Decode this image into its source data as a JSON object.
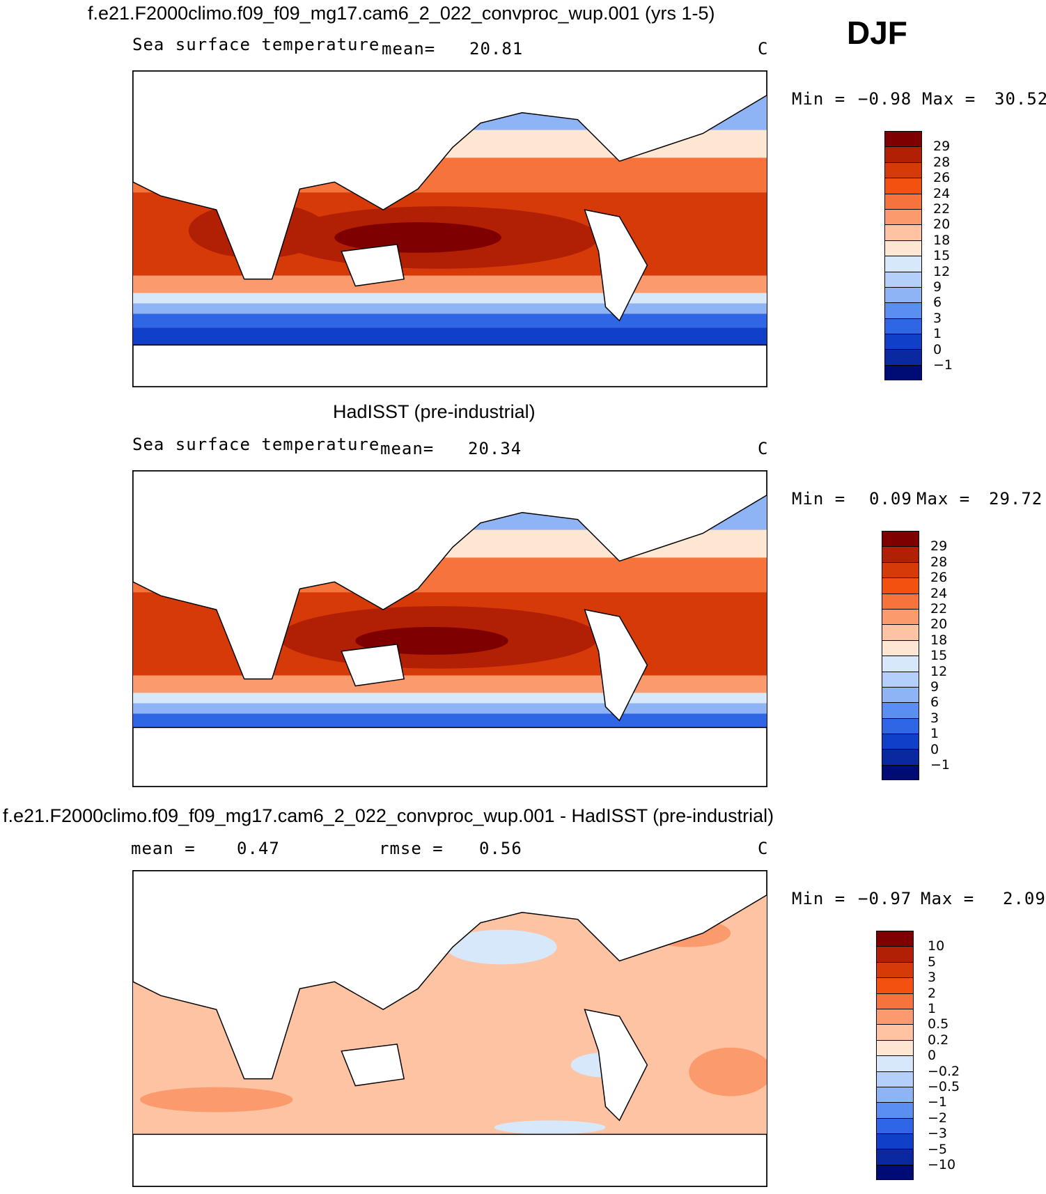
{
  "season": "DJF",
  "panels": [
    {
      "title": "f.e21.F2000climo.f09_f09_mg17.cam6_2_022_convproc_wup.001 (yrs 1-5)",
      "variable": "Sea surface temperature",
      "stat1_label": "mean=",
      "stat1_value": "20.81",
      "stat2_label": "",
      "stat2_value": "",
      "units": "C",
      "min_label": "Min =",
      "min_value": "−0.98",
      "max_label": "Max =",
      "max_value": "30.52",
      "palette": "abs",
      "levels": [
        "29",
        "28",
        "26",
        "24",
        "22",
        "20",
        "18",
        "15",
        "12",
        "9",
        "6",
        "3",
        "1",
        "0",
        "−1"
      ]
    },
    {
      "title": "HadISST (pre-industrial)",
      "variable": "Sea surface temperature",
      "stat1_label": "mean=",
      "stat1_value": "20.34",
      "stat2_label": "",
      "stat2_value": "",
      "units": "C",
      "min_label": "Min =",
      "min_value": "0.09",
      "max_label": "Max =",
      "max_value": "29.72",
      "palette": "abs",
      "levels": [
        "29",
        "28",
        "26",
        "24",
        "22",
        "20",
        "18",
        "15",
        "12",
        "9",
        "6",
        "3",
        "1",
        "0",
        "−1"
      ]
    },
    {
      "title": "f.e21.F2000climo.f09_f09_mg17.cam6_2_022_convproc_wup.001 - HadISST (pre-industrial)",
      "variable": "",
      "stat1_label": "mean =",
      "stat1_value": "0.47",
      "stat2_label": "rmse =",
      "stat2_value": "0.56",
      "units": "C",
      "min_label": "Min =",
      "min_value": "−0.97",
      "max_label": "Max =",
      "max_value": "2.09",
      "palette": "diff",
      "levels": [
        "10",
        "5",
        "3",
        "2",
        "1",
        "0.5",
        "0.2",
        "0",
        "−0.2",
        "−0.5",
        "−1",
        "−2",
        "−3",
        "−5",
        "−10"
      ]
    }
  ],
  "colors": {
    "abs": [
      "#7f0000",
      "#b11f05",
      "#d63a08",
      "#f2510f",
      "#f7733c",
      "#fb9a6c",
      "#fdc3a3",
      "#fde6d2",
      "#d8e8fb",
      "#b4cffa",
      "#8eb4f6",
      "#5b8ef1",
      "#2f66e6",
      "#1040c8",
      "#0a28a0",
      "#000c75"
    ],
    "diff": [
      "#7f0000",
      "#b11f05",
      "#d63a08",
      "#f2510f",
      "#f7733c",
      "#fb9a6c",
      "#fdc3a3",
      "#fde6d2",
      "#d8e8fb",
      "#b4cffa",
      "#8eb4f6",
      "#5b8ef1",
      "#2f66e6",
      "#1040c8",
      "#0a28a0",
      "#000c75"
    ]
  }
}
